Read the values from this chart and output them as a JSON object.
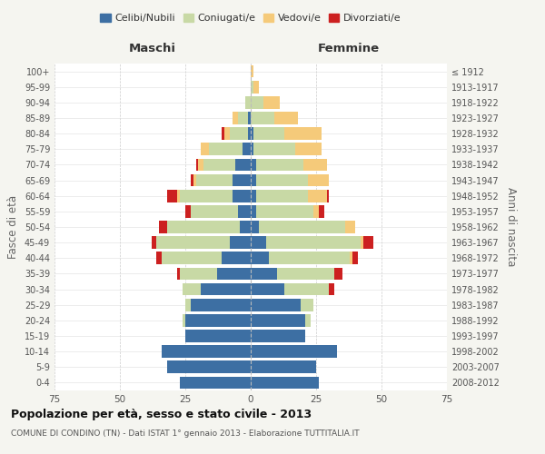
{
  "age_groups": [
    "0-4",
    "5-9",
    "10-14",
    "15-19",
    "20-24",
    "25-29",
    "30-34",
    "35-39",
    "40-44",
    "45-49",
    "50-54",
    "55-59",
    "60-64",
    "65-69",
    "70-74",
    "75-79",
    "80-84",
    "85-89",
    "90-94",
    "95-99",
    "100+"
  ],
  "birth_years": [
    "2008-2012",
    "2003-2007",
    "1998-2002",
    "1993-1997",
    "1988-1992",
    "1983-1987",
    "1978-1982",
    "1973-1977",
    "1968-1972",
    "1963-1967",
    "1958-1962",
    "1953-1957",
    "1948-1952",
    "1943-1947",
    "1938-1942",
    "1933-1937",
    "1928-1932",
    "1923-1927",
    "1918-1922",
    "1913-1917",
    "≤ 1912"
  ],
  "male": {
    "celibe": [
      27,
      32,
      34,
      25,
      25,
      23,
      19,
      13,
      11,
      8,
      4,
      5,
      7,
      7,
      6,
      3,
      1,
      1,
      0,
      0,
      0
    ],
    "coniugato": [
      0,
      0,
      0,
      0,
      1,
      2,
      7,
      14,
      23,
      28,
      28,
      18,
      20,
      14,
      12,
      13,
      7,
      4,
      2,
      0,
      0
    ],
    "vedovo": [
      0,
      0,
      0,
      0,
      0,
      0,
      0,
      0,
      0,
      0,
      0,
      0,
      1,
      1,
      2,
      3,
      2,
      2,
      0,
      0,
      0
    ],
    "divorziato": [
      0,
      0,
      0,
      0,
      0,
      0,
      0,
      1,
      2,
      2,
      3,
      2,
      4,
      1,
      1,
      0,
      1,
      0,
      0,
      0,
      0
    ]
  },
  "female": {
    "nubile": [
      26,
      25,
      33,
      21,
      21,
      19,
      13,
      10,
      7,
      6,
      3,
      2,
      2,
      2,
      2,
      1,
      1,
      0,
      0,
      0,
      0
    ],
    "coniugata": [
      0,
      0,
      0,
      0,
      2,
      5,
      17,
      22,
      31,
      36,
      33,
      22,
      20,
      20,
      18,
      16,
      12,
      9,
      5,
      1,
      0
    ],
    "vedova": [
      0,
      0,
      0,
      0,
      0,
      0,
      0,
      0,
      1,
      1,
      4,
      2,
      7,
      8,
      9,
      10,
      14,
      9,
      6,
      2,
      1
    ],
    "divorziata": [
      0,
      0,
      0,
      0,
      0,
      0,
      2,
      3,
      2,
      4,
      0,
      2,
      1,
      0,
      0,
      0,
      0,
      0,
      0,
      0,
      0
    ]
  },
  "colors": {
    "celibe": "#3d6fa3",
    "coniugato": "#c8d9a5",
    "vedovo": "#f5ca7a",
    "divorziato": "#cc2020"
  },
  "xlim": 75,
  "title": "Popolazione per età, sesso e stato civile - 2013",
  "subtitle": "COMUNE DI CONDINO (TN) - Dati ISTAT 1° gennaio 2013 - Elaborazione TUTTITALIA.IT",
  "ylabel_left": "Fasce di età",
  "ylabel_right": "Anni di nascita",
  "xlabel_male": "Maschi",
  "xlabel_female": "Femmine",
  "legend_labels": [
    "Celibi/Nubili",
    "Coniugati/e",
    "Vedovi/e",
    "Divorziati/e"
  ],
  "bg_color": "#f5f5f0",
  "plot_bg": "#ffffff"
}
